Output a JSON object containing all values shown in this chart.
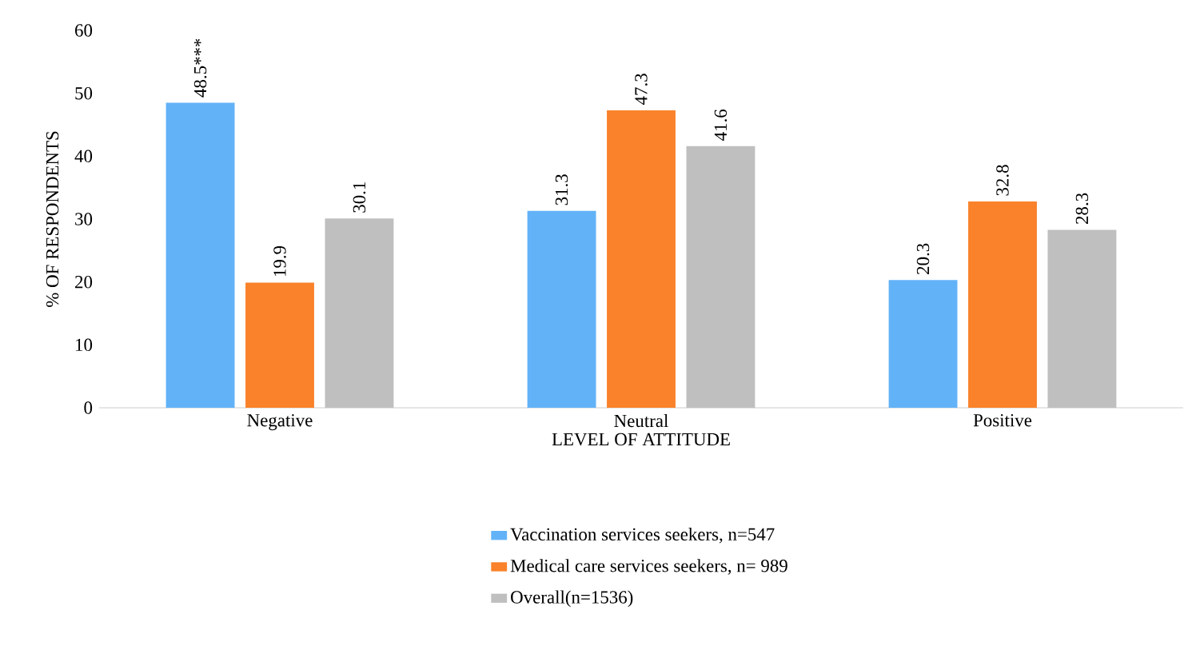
{
  "chart_data": {
    "type": "bar",
    "xlabel": "LEVEL OF ATTITUDE",
    "ylabel": "% OF RESPONDENTS",
    "categories": [
      "Negative",
      "Neutral",
      "Positive"
    ],
    "series": [
      {
        "name": "Vaccination services seekers, n=547",
        "color": "#62b2f7",
        "values": [
          48.5,
          31.3,
          20.3
        ],
        "value_labels": [
          "48.5***",
          "31.3",
          "20.3"
        ]
      },
      {
        "name": "Medical care services seekers, n= 989",
        "color": "#f9822a",
        "values": [
          19.9,
          47.3,
          32.8
        ],
        "value_labels": [
          "19.9",
          "47.3",
          "32.8"
        ]
      },
      {
        "name": "Overall(n=1536)",
        "color": "#bfbfbf",
        "values": [
          30.1,
          41.6,
          28.3
        ],
        "value_labels": [
          "30.1",
          "41.6",
          "28.3"
        ]
      }
    ],
    "ylim": [
      0,
      60
    ],
    "yticks": [
      0,
      10,
      20,
      30,
      40,
      50,
      60
    ],
    "legend": "bottom"
  }
}
